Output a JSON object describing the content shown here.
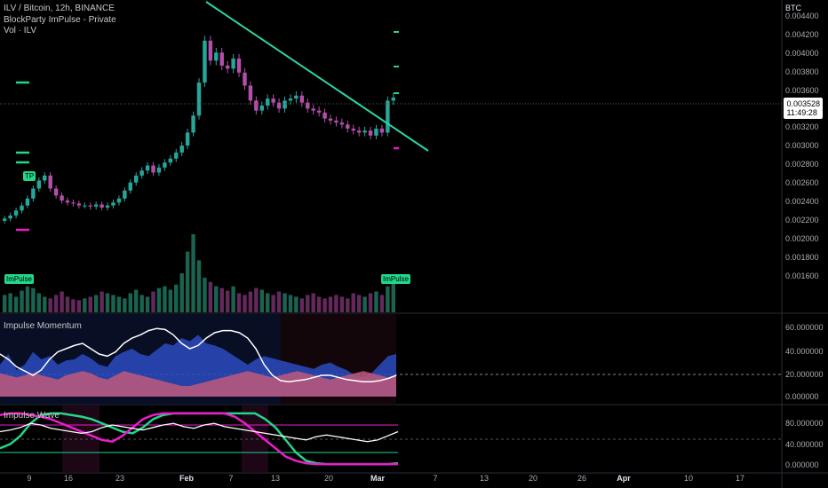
{
  "header": {
    "symbol": "ILV / Bitcoin, 12h, BINANCE",
    "indicator_1": "BlockParty ImPulse - Private",
    "indicator_2": "Vol · ILV"
  },
  "axis_currency": "BTC",
  "price_axis": [
    "0.004400",
    "0.004200",
    "0.004000",
    "0.003800",
    "0.003600",
    "0.003400",
    "0.003200",
    "0.003000",
    "0.002800",
    "0.002600",
    "0.002400",
    "0.002200",
    "0.002000",
    "0.001800",
    "0.001600"
  ],
  "current_price": {
    "value": "0.003528",
    "countdown": "11:49:28"
  },
  "tags": {
    "tp": "TP",
    "impulse_left": "ImPulse",
    "impulse_right": "ImPulse"
  },
  "momentum_pane": {
    "title": "Impulse Momentum",
    "axis": [
      "60.000000",
      "40.000000",
      "20.000000",
      "0.000000"
    ]
  },
  "wave_pane": {
    "title": "Impulse Wave",
    "axis": [
      "80.000000",
      "40.000000",
      "0.000000"
    ]
  },
  "time_axis": [
    "9",
    "16",
    "23",
    "Feb",
    "7",
    "13",
    "20",
    "Mar",
    "7",
    "13",
    "20",
    "26",
    "Apr",
    "10",
    "17"
  ],
  "colors": {
    "bull": "#26a69a",
    "bear": "#b44fa8",
    "trend": "#2dd4a8",
    "magenta": "#e91ec8",
    "green": "#22d68a",
    "blue": "#2b4bbf",
    "pink": "#c0587a"
  },
  "chart_data": {
    "type": "candlestick",
    "title": "ILV / Bitcoin, 12h, BINANCE",
    "xlabel": "",
    "ylabel": "",
    "ylim": [
      0.00155,
      0.0044
    ],
    "current": 0.003528,
    "ticks_x": [
      "9",
      "16",
      "23",
      "Feb",
      "7",
      "13",
      "20",
      "Mar",
      "7",
      "13",
      "20",
      "26",
      "Apr",
      "10",
      "17"
    ],
    "close_series": [
      0.00232,
      0.00235,
      0.0024,
      0.00245,
      0.00252,
      0.00262,
      0.0027,
      0.00275,
      0.00262,
      0.00255,
      0.0025,
      0.00248,
      0.00247,
      0.00245,
      0.00245,
      0.00244,
      0.00246,
      0.00243,
      0.00245,
      0.00248,
      0.00252,
      0.0026,
      0.00268,
      0.00275,
      0.0028,
      0.00285,
      0.00278,
      0.00283,
      0.00288,
      0.00292,
      0.00298,
      0.00305,
      0.00318,
      0.00335,
      0.00368,
      0.0041,
      0.0039,
      0.00398,
      0.00385,
      0.00382,
      0.00392,
      0.00378,
      0.00365,
      0.0035,
      0.0034,
      0.00345,
      0.00352,
      0.00348,
      0.00342,
      0.0035,
      0.00352,
      0.00355,
      0.00348,
      0.00342,
      0.0034,
      0.00338,
      0.00332,
      0.0033,
      0.00328,
      0.00326,
      0.00322,
      0.0032,
      0.00318,
      0.0032,
      0.00315,
      0.00322,
      0.00318,
      0.0035,
      0.00353
    ],
    "volume_series": [
      20,
      22,
      18,
      25,
      30,
      28,
      22,
      18,
      16,
      20,
      24,
      18,
      15,
      14,
      16,
      18,
      20,
      24,
      22,
      20,
      18,
      16,
      22,
      26,
      20,
      18,
      24,
      28,
      30,
      26,
      32,
      45,
      70,
      90,
      60,
      40,
      35,
      30,
      28,
      25,
      30,
      22,
      20,
      24,
      28,
      26,
      22,
      20,
      24,
      22,
      20,
      18,
      16,
      20,
      22,
      18,
      16,
      18,
      20,
      18,
      16,
      22,
      20,
      18,
      22,
      24,
      20,
      30,
      40
    ],
    "momentum": {
      "white_line": [
        40,
        35,
        28,
        24,
        20,
        25,
        35,
        42,
        45,
        48,
        50,
        45,
        40,
        38,
        42,
        50,
        55,
        58,
        62,
        64,
        63,
        58,
        50,
        45,
        48,
        55,
        60,
        62,
        62,
        60,
        55,
        45,
        30,
        20,
        15,
        14,
        15,
        16,
        18,
        20,
        20,
        18,
        16,
        15,
        14,
        14,
        15,
        17,
        20
      ],
      "blue_area": [
        30,
        40,
        25,
        30,
        42,
        35,
        38,
        30,
        34,
        35,
        40,
        36,
        30,
        28,
        38,
        42,
        45,
        40,
        38,
        44,
        50,
        48,
        55,
        52,
        58,
        50,
        48,
        45,
        40,
        35,
        30,
        35,
        38,
        36,
        34,
        32,
        30,
        28,
        26,
        30,
        32,
        28,
        25,
        20,
        18,
        22,
        30,
        38,
        40
      ],
      "pink_area": [
        22,
        20,
        18,
        20,
        22,
        20,
        18,
        16,
        20,
        22,
        24,
        22,
        18,
        16,
        20,
        24,
        22,
        20,
        18,
        16,
        14,
        12,
        10,
        10,
        12,
        14,
        16,
        18,
        20,
        22,
        24,
        22,
        20,
        18,
        20,
        22,
        24,
        22,
        20,
        18,
        16,
        18,
        20,
        22,
        24,
        22,
        20,
        18,
        20
      ]
    },
    "wave": {
      "green_line": [
        20,
        25,
        35,
        50,
        60,
        62,
        62,
        60,
        58,
        55,
        50,
        45,
        40,
        38,
        45,
        55,
        60,
        62,
        62,
        62,
        62,
        62,
        62,
        62,
        62,
        62,
        55,
        45,
        30,
        15,
        5,
        2,
        1,
        1,
        1,
        1,
        1,
        1,
        1,
        2
      ],
      "magenta_line": [
        60,
        62,
        62,
        60,
        58,
        55,
        50,
        45,
        40,
        35,
        30,
        28,
        35,
        45,
        55,
        60,
        62,
        62,
        62,
        62,
        62,
        62,
        62,
        58,
        50,
        40,
        30,
        20,
        10,
        5,
        2,
        1,
        1,
        1,
        1,
        1,
        1,
        1,
        1,
        1
      ],
      "white_line": [
        40,
        42,
        45,
        50,
        48,
        44,
        42,
        40,
        38,
        40,
        45,
        48,
        46,
        44,
        42,
        45,
        48,
        50,
        46,
        44,
        48,
        50,
        46,
        44,
        42,
        40,
        38,
        36,
        34,
        32,
        30,
        34,
        36,
        34,
        32,
        30,
        28,
        30,
        35,
        40
      ]
    }
  }
}
